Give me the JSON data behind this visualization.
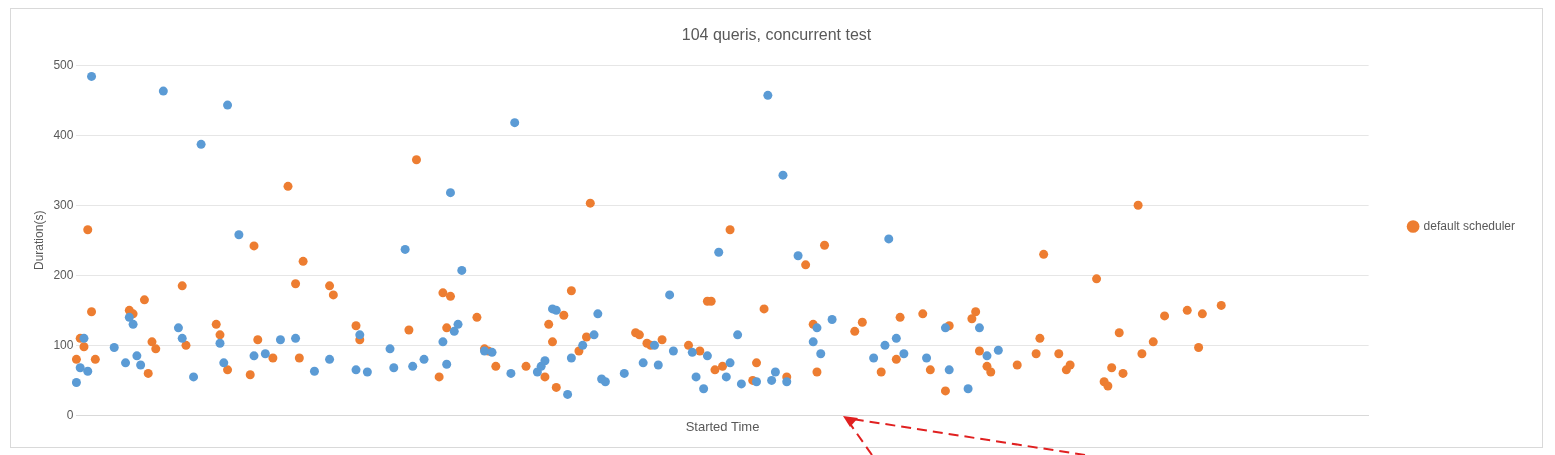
{
  "chart_data": {
    "type": "scatter",
    "title": "104 queris, concurrent test",
    "xlabel": "Started Time",
    "ylabel": "Duration(s)",
    "categories": [
      null,
      null,
      null,
      null,
      null,
      null,
      null,
      null,
      null,
      null,
      null,
      null,
      null,
      null,
      null,
      null,
      null,
      null,
      null,
      null,
      null,
      null,
      null,
      null,
      null,
      null,
      null,
      null,
      null,
      null,
      null,
      null,
      null,
      null,
      null,
      null,
      null,
      null,
      null,
      null,
      null,
      null,
      null,
      null,
      null,
      null,
      null,
      null,
      null,
      null,
      null,
      null,
      null,
      null,
      null,
      null,
      null,
      null,
      null,
      null,
      null,
      null,
      null,
      null,
      null,
      null,
      null,
      null,
      null,
      null,
      null,
      null,
      null,
      null,
      null,
      null,
      null,
      null,
      null,
      null,
      null,
      null,
      null,
      null,
      null,
      null,
      null,
      null,
      null,
      null,
      null,
      null,
      null,
      null,
      null,
      null,
      null,
      null,
      null,
      null,
      null,
      null,
      null,
      null,
      null,
      null,
      null,
      null,
      null,
      null,
      null,
      null,
      null,
      null,
      null,
      null,
      null,
      null,
      null,
      null,
      null,
      null,
      null,
      null,
      null,
      null,
      null,
      null,
      null,
      null,
      null,
      null,
      null,
      null,
      null,
      null,
      null,
      null,
      null,
      null,
      null,
      null,
      null,
      null,
      null,
      null,
      null,
      null,
      null,
      null,
      null,
      null,
      null,
      null,
      null,
      null,
      null,
      null,
      null,
      null,
      null,
      null,
      null,
      null,
      null,
      null,
      null,
      null,
      null,
      null,
      null,
      null,
      null,
      null,
      null,
      null,
      null,
      null,
      null,
      null,
      null,
      null,
      null,
      null,
      null,
      null,
      null,
      null,
      null,
      null,
      null,
      null,
      null,
      null,
      null,
      null,
      null,
      null,
      null,
      null,
      null,
      null,
      null,
      null,
      null,
      null,
      null,
      null,
      null,
      null,
      null,
      null,
      null,
      null,
      null,
      null,
      null,
      null,
      null,
      null,
      null,
      null,
      null,
      null,
      null,
      null,
      null,
      null,
      null,
      null,
      null,
      null,
      null,
      null,
      null,
      null,
      null,
      null,
      null,
      null,
      null,
      null,
      null,
      null,
      null,
      null,
      null,
      null,
      null,
      null,
      null,
      null,
      null,
      null,
      null,
      null,
      null,
      null,
      null,
      null,
      null,
      null,
      null,
      null,
      null,
      null,
      null,
      null,
      null,
      null,
      null,
      null,
      null,
      null,
      null,
      null,
      null,
      null,
      null,
      null,
      null,
      null,
      null,
      null,
      null,
      null,
      null,
      null,
      null,
      null,
      null,
      null,
      null,
      null,
      null,
      null,
      null,
      null,
      null,
      null,
      null,
      null,
      null,
      null,
      null,
      null,
      null,
      null,
      null,
      null,
      null,
      null,
      null,
      null,
      null,
      null,
      null,
      null,
      null,
      null,
      null,
      null,
      null,
      null,
      null,
      null,
      null,
      null,
      null,
      null,
      null,
      null,
      null,
      null,
      null,
      null,
      null,
      null,
      null,
      null,
      null,
      null,
      null
    ],
    "ylim": [
      0,
      500
    ],
    "yticks": [
      0,
      100,
      200,
      300,
      400,
      500
    ],
    "grid": "y",
    "legend": "right",
    "tick_labels": "y",
    "marker": "circle",
    "series": [
      {
        "color": "#5b9bd5",
        "values": [
          47,
          68,
          110,
          63,
          484,
          null,
          null,
          null,
          null,
          null,
          97,
          null,
          null,
          75,
          140,
          130,
          85,
          72,
          null,
          null,
          null,
          null,
          null,
          463,
          null,
          null,
          null,
          125,
          110,
          null,
          null,
          55,
          null,
          387,
          null,
          null,
          null,
          null,
          103,
          75,
          443,
          null,
          null,
          258,
          null,
          null,
          null,
          85,
          null,
          null,
          88,
          null,
          null,
          null,
          108,
          null,
          null,
          null,
          110,
          null,
          null,
          null,
          null,
          63,
          null,
          null,
          null,
          80,
          null,
          null,
          null,
          null,
          null,
          null,
          65,
          115,
          null,
          62,
          null,
          null,
          null,
          null,
          null,
          95,
          68,
          null,
          null,
          237,
          null,
          70,
          null,
          null,
          80,
          null,
          null,
          null,
          null,
          105,
          73,
          318,
          120,
          130,
          207,
          null,
          null,
          null,
          null,
          null,
          92,
          null,
          90,
          null,
          null,
          null,
          null,
          60,
          418,
          null,
          null,
          null,
          null,
          null,
          62,
          70,
          78,
          null,
          152,
          150,
          null,
          null,
          30,
          82,
          null,
          null,
          100,
          null,
          null,
          115,
          145,
          52,
          48,
          null,
          null,
          null,
          null,
          60,
          null,
          null,
          null,
          null,
          75,
          null,
          null,
          100,
          72,
          null,
          null,
          172,
          92,
          null,
          null,
          null,
          null,
          90,
          55,
          null,
          38,
          85,
          null,
          null,
          233,
          null,
          55,
          75,
          null,
          115,
          45,
          null,
          null,
          null,
          48,
          null,
          null,
          457,
          50,
          62,
          null,
          343,
          48,
          null,
          null,
          228,
          null,
          null,
          null,
          105,
          125,
          88,
          null,
          null,
          137,
          null,
          null,
          null,
          null,
          null,
          null,
          null,
          null,
          null,
          null,
          82,
          null,
          null,
          100,
          252,
          null,
          110,
          null,
          88,
          null,
          null,
          null,
          null,
          null,
          82,
          null,
          null,
          null,
          null,
          125,
          65,
          null,
          null,
          null,
          null,
          38,
          null,
          null,
          125,
          null,
          85,
          null,
          null,
          93,
          null,
          null,
          null,
          null,
          null,
          null,
          null,
          null,
          null,
          null,
          null,
          null,
          null,
          null,
          null,
          null,
          null,
          null,
          null,
          null,
          null,
          null,
          null,
          null,
          null,
          null,
          null,
          null,
          null,
          null,
          null,
          null,
          null,
          null,
          null,
          null,
          null,
          null,
          null,
          null,
          null,
          null,
          null,
          null,
          null,
          null,
          null,
          null,
          null,
          null,
          null,
          null,
          null,
          null,
          null,
          null,
          null,
          null,
          null,
          null,
          null,
          null,
          null,
          null,
          null,
          null,
          null,
          null,
          null,
          null,
          null,
          null,
          null,
          null,
          null,
          null,
          null,
          null,
          null,
          null,
          null,
          null,
          null,
          null,
          null,
          null,
          null,
          null,
          null,
          null,
          null,
          null,
          null,
          null,
          null,
          null,
          null,
          null
        ]
      },
      {
        "name": "default scheduler",
        "color": "#ed7d31",
        "values": [
          80,
          110,
          98,
          265,
          148,
          80,
          null,
          null,
          null,
          null,
          null,
          null,
          null,
          null,
          150,
          145,
          null,
          null,
          165,
          60,
          105,
          95,
          null,
          null,
          null,
          null,
          null,
          null,
          185,
          100,
          null,
          null,
          null,
          null,
          null,
          null,
          null,
          130,
          115,
          null,
          65,
          null,
          null,
          null,
          null,
          null,
          58,
          242,
          108,
          null,
          null,
          null,
          82,
          null,
          null,
          null,
          327,
          null,
          188,
          82,
          220,
          null,
          null,
          null,
          null,
          null,
          null,
          185,
          172,
          null,
          null,
          null,
          null,
          null,
          128,
          108,
          null,
          null,
          null,
          null,
          null,
          null,
          null,
          null,
          null,
          null,
          null,
          null,
          122,
          null,
          365,
          null,
          null,
          null,
          null,
          null,
          55,
          175,
          125,
          170,
          null,
          null,
          null,
          null,
          null,
          null,
          140,
          null,
          95,
          92,
          null,
          70,
          null,
          null,
          null,
          null,
          null,
          null,
          null,
          70,
          null,
          null,
          null,
          null,
          55,
          130,
          105,
          40,
          null,
          143,
          null,
          178,
          null,
          92,
          null,
          112,
          303,
          null,
          null,
          null,
          null,
          null,
          null,
          null,
          null,
          null,
          null,
          null,
          118,
          115,
          null,
          103,
          100,
          null,
          null,
          108,
          null,
          null,
          null,
          null,
          null,
          null,
          100,
          null,
          null,
          92,
          null,
          163,
          163,
          65,
          null,
          70,
          null,
          265,
          null,
          null,
          null,
          null,
          null,
          50,
          75,
          null,
          152,
          null,
          null,
          null,
          null,
          null,
          55,
          null,
          null,
          null,
          null,
          215,
          null,
          130,
          62,
          null,
          243,
          null,
          null,
          null,
          null,
          null,
          null,
          null,
          120,
          null,
          133,
          null,
          null,
          null,
          null,
          62,
          null,
          null,
          null,
          80,
          140,
          null,
          null,
          null,
          null,
          null,
          145,
          null,
          65,
          null,
          null,
          null,
          35,
          128,
          null,
          null,
          null,
          null,
          null,
          138,
          148,
          92,
          null,
          70,
          62,
          null,
          null,
          null,
          null,
          null,
          null,
          72,
          null,
          null,
          null,
          null,
          88,
          110,
          230,
          null,
          null,
          null,
          88,
          null,
          65,
          72,
          null,
          null,
          null,
          null,
          null,
          null,
          195,
          null,
          48,
          42,
          68,
          null,
          118,
          60,
          null,
          null,
          null,
          300,
          88,
          null,
          null,
          105,
          null,
          null,
          142,
          null,
          null,
          null,
          null,
          null,
          150,
          null,
          null,
          97,
          145,
          null,
          null,
          null,
          null,
          157,
          null,
          null,
          null,
          null,
          null,
          null,
          null,
          null,
          null,
          null,
          null,
          null,
          null,
          null,
          null,
          null,
          null,
          null,
          null,
          null,
          null,
          null,
          null,
          null,
          null,
          null,
          null,
          null,
          null,
          null,
          null,
          null,
          null,
          null,
          null,
          null,
          null,
          null,
          null
        ]
      }
    ]
  }
}
